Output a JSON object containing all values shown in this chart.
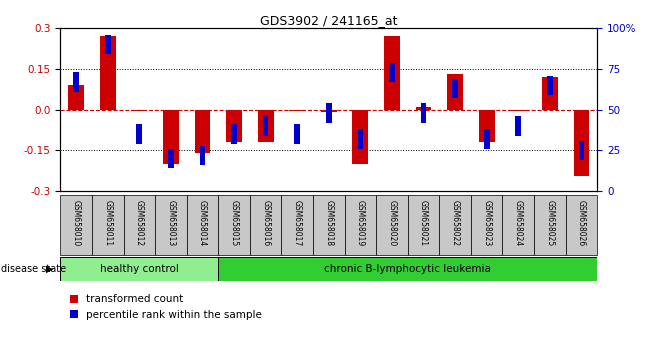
{
  "title": "GDS3902 / 241165_at",
  "samples": [
    "GSM658010",
    "GSM658011",
    "GSM658012",
    "GSM658013",
    "GSM658014",
    "GSM658015",
    "GSM658016",
    "GSM658017",
    "GSM658018",
    "GSM658019",
    "GSM658020",
    "GSM658021",
    "GSM658022",
    "GSM658023",
    "GSM658024",
    "GSM658025",
    "GSM658026"
  ],
  "red_values": [
    0.09,
    0.27,
    -0.005,
    -0.2,
    -0.16,
    -0.12,
    -0.12,
    -0.005,
    -0.01,
    -0.2,
    0.27,
    0.01,
    0.13,
    -0.12,
    -0.005,
    0.12,
    -0.245
  ],
  "blue_values_pct": [
    67,
    90,
    35,
    20,
    22,
    35,
    40,
    35,
    48,
    32,
    73,
    48,
    63,
    32,
    40,
    65,
    25
  ],
  "healthy_count": 5,
  "disease_label_healthy": "healthy control",
  "disease_label_leukemia": "chronic B-lymphocytic leukemia",
  "disease_state_label": "disease state",
  "legend_red": "transformed count",
  "legend_blue": "percentile rank within the sample",
  "red_color": "#CC0000",
  "blue_color": "#0000CC",
  "bar_width": 0.5,
  "blue_sq_size": 0.18,
  "ylim": [
    -0.3,
    0.3
  ],
  "yticks_left": [
    -0.3,
    -0.15,
    0.0,
    0.15,
    0.3
  ],
  "yticks_right": [
    0,
    25,
    50,
    75,
    100
  ],
  "ytick_right_labels": [
    "0",
    "25",
    "50",
    "75",
    "100%"
  ],
  "hlines_dotted": [
    0.15,
    -0.15
  ],
  "healthy_color": "#90EE90",
  "leukemia_color": "#32CD32",
  "label_box_color": "#C8C8C8"
}
